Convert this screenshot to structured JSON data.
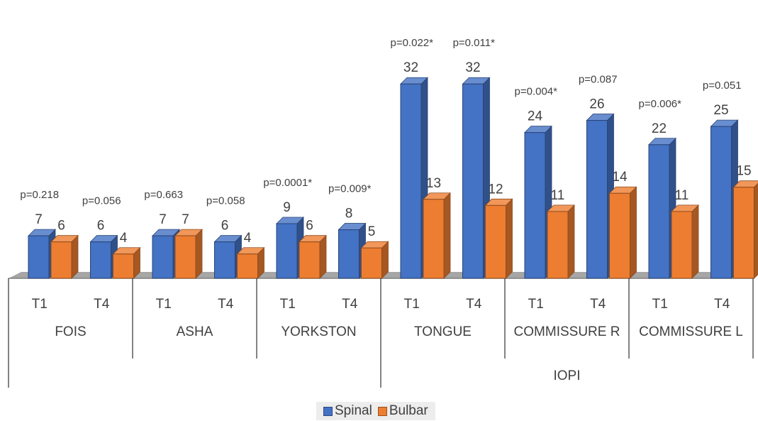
{
  "chart_data": {
    "type": "bar",
    "categories": [
      "T1",
      "T4",
      "T1",
      "T4",
      "T1",
      "T4",
      "T1",
      "T4",
      "T1",
      "T4",
      "T1",
      "T4"
    ],
    "groups": [
      {
        "label": "FOIS",
        "start": 0,
        "count": 2
      },
      {
        "label": "ASHA",
        "start": 2,
        "count": 2
      },
      {
        "label": "YORKSTON",
        "start": 4,
        "count": 2
      },
      {
        "label": "TONGUE",
        "start": 6,
        "count": 2
      },
      {
        "label": "COMMISSURE R",
        "start": 8,
        "count": 2
      },
      {
        "label": "COMMISSURE L",
        "start": 10,
        "count": 2
      }
    ],
    "supergroups": [
      {
        "label": "IOPI",
        "start": 6,
        "count": 6
      }
    ],
    "series": [
      {
        "name": "Spinal",
        "color": "#4472C4",
        "values": [
          7,
          6,
          7,
          6,
          9,
          8,
          32,
          32,
          24,
          26,
          22,
          25
        ]
      },
      {
        "name": "Bulbar",
        "color": "#ED7D31",
        "values": [
          6,
          4,
          7,
          4,
          6,
          5,
          13,
          12,
          11,
          14,
          11,
          15
        ]
      }
    ],
    "p_values": [
      "p=0.218",
      "p=0.056",
      "p=0.663",
      "p=0.058",
      "p=0.0001*",
      "p=0.009*",
      "p=0.022*",
      "p=0.011*",
      "p=0.004*",
      "p=0.087",
      "p=0.006*",
      "p=0.051"
    ],
    "ylim": [
      0,
      36
    ],
    "grid": false,
    "legend_position": "bottom"
  }
}
